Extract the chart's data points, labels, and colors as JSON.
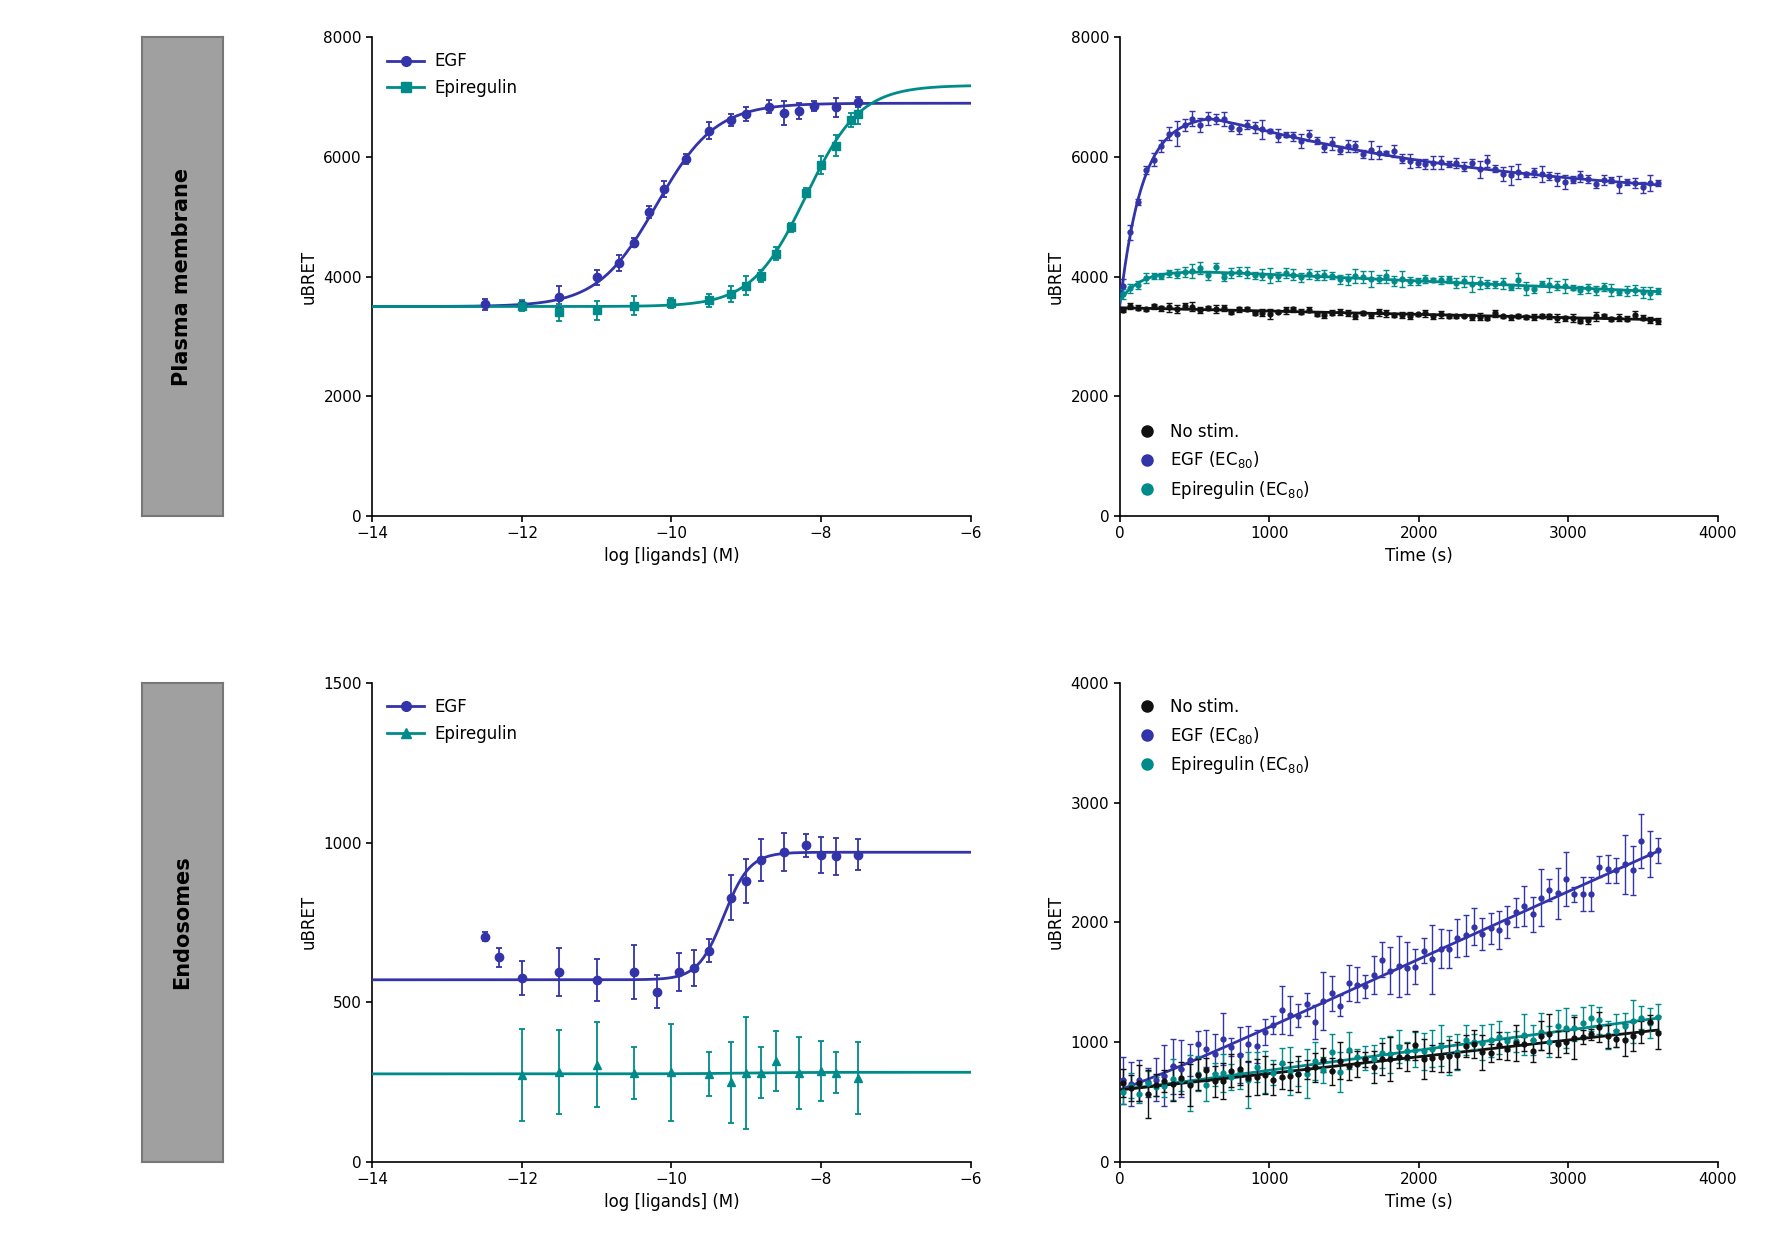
{
  "colors": {
    "egf": "#3333AA",
    "epiregulin": "#008B8B",
    "no_stim": "#111111",
    "label_box_bg": "#A0A0A0",
    "panel_border": "#777777"
  },
  "panel_labels": {
    "top": "Plasma membrane",
    "bottom": "Endosomes"
  },
  "axes": {
    "dose_top": {
      "xlim": [
        -14,
        -6
      ],
      "ylim": [
        0,
        8000
      ],
      "yticks": [
        0,
        2000,
        4000,
        6000,
        8000
      ],
      "xticks": [
        -14,
        -12,
        -10,
        -8,
        -6
      ],
      "xlabel": "log [ligands] (M)",
      "ylabel": "uBRET"
    },
    "time_top": {
      "xlim": [
        0,
        4000
      ],
      "ylim": [
        0,
        8000
      ],
      "yticks": [
        0,
        2000,
        4000,
        6000,
        8000
      ],
      "xticks": [
        0,
        1000,
        2000,
        3000,
        4000
      ],
      "xlabel": "Time (s)",
      "ylabel": "uBRET"
    },
    "dose_bot": {
      "xlim": [
        -14,
        -6
      ],
      "ylim": [
        0,
        1500
      ],
      "yticks": [
        0,
        500,
        1000,
        1500
      ],
      "xticks": [
        -14,
        -12,
        -10,
        -8,
        -6
      ],
      "xlabel": "log [ligands] (M)",
      "ylabel": "uBRET"
    },
    "time_bot": {
      "xlim": [
        0,
        4000
      ],
      "ylim": [
        0,
        4000
      ],
      "yticks": [
        0,
        1000,
        2000,
        3000,
        4000
      ],
      "xticks": [
        0,
        1000,
        2000,
        3000,
        4000
      ],
      "xlabel": "Time (s)",
      "ylabel": "uBRET"
    }
  }
}
